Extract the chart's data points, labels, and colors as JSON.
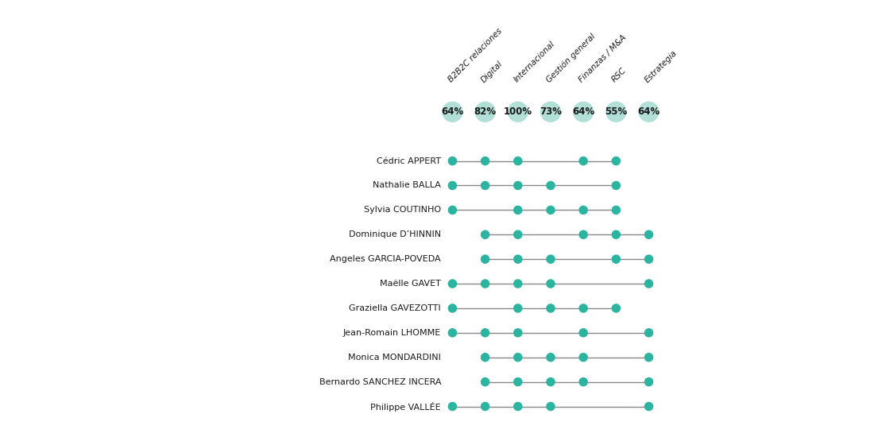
{
  "columns": [
    "B2B2C relaciones",
    "Digital",
    "Internacional",
    "Gestión general",
    "Finanzas / M&A",
    "RSC",
    "Estrategia"
  ],
  "percentages": [
    "64%",
    "82%",
    "100%",
    "73%",
    "64%",
    "55%",
    "64%"
  ],
  "rows": [
    {
      "name": "Cédric APPERT",
      "dots": [
        1,
        1,
        1,
        0,
        1,
        1,
        0
      ]
    },
    {
      "name": "Nathalie BALLA",
      "dots": [
        1,
        1,
        1,
        1,
        0,
        1,
        0
      ]
    },
    {
      "name": "Sylvia COUTINHO",
      "dots": [
        1,
        0,
        1,
        1,
        1,
        1,
        0
      ]
    },
    {
      "name": "Dominique D’HINNIN",
      "dots": [
        0,
        1,
        1,
        0,
        1,
        1,
        1
      ]
    },
    {
      "name": "Angeles GARCIA-POVEDA",
      "dots": [
        0,
        1,
        1,
        1,
        0,
        1,
        1
      ]
    },
    {
      "name": "Maëlle GAVET",
      "dots": [
        1,
        1,
        1,
        1,
        0,
        0,
        1
      ]
    },
    {
      "name": "Graziella GAVEZOTTI",
      "dots": [
        1,
        0,
        1,
        1,
        1,
        1,
        0
      ]
    },
    {
      "name": "Jean-Romain LHOMME",
      "dots": [
        1,
        1,
        1,
        0,
        1,
        0,
        1
      ]
    },
    {
      "name": "Monica MONDARDINI",
      "dots": [
        0,
        1,
        1,
        1,
        1,
        0,
        1
      ]
    },
    {
      "name": "Bernardo SANCHEZ INCERA",
      "dots": [
        0,
        1,
        1,
        1,
        1,
        0,
        1
      ]
    },
    {
      "name": "Philippe VALLÉE",
      "dots": [
        1,
        1,
        1,
        1,
        0,
        0,
        1
      ]
    }
  ],
  "dot_color": "#2bb5a0",
  "bubble_color": "#b2e0d8",
  "line_color": "#888888",
  "bg_color": "#ffffff",
  "text_color": "#1a1a1a",
  "figsize": [
    11.0,
    5.5
  ],
  "dpi": 100
}
